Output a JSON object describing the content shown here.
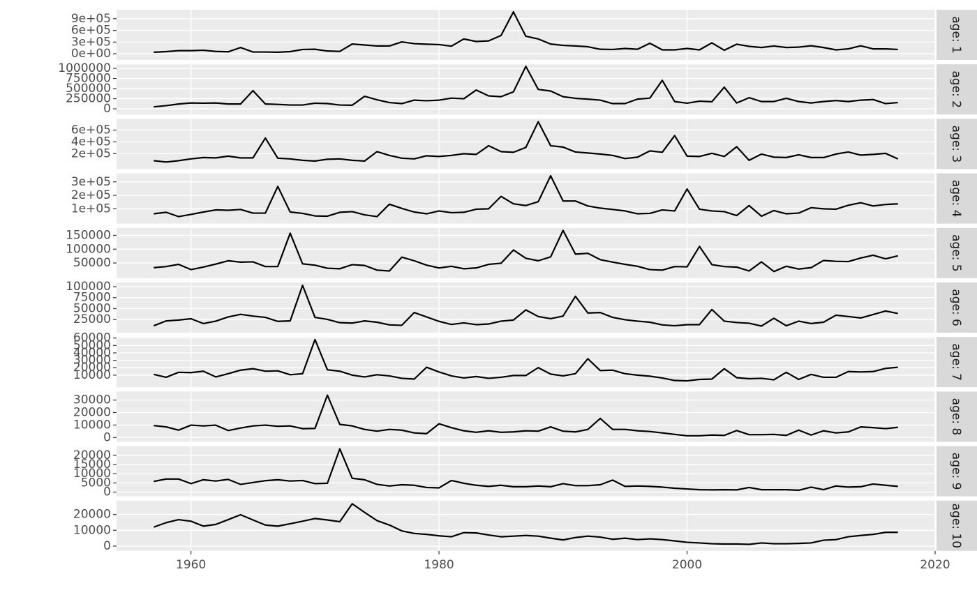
{
  "chart_data": {
    "type": "line",
    "color": "#000000",
    "grid": true,
    "x": [
      1957,
      1958,
      1959,
      1960,
      1961,
      1962,
      1963,
      1964,
      1965,
      1966,
      1967,
      1968,
      1969,
      1970,
      1971,
      1972,
      1973,
      1974,
      1975,
      1976,
      1977,
      1978,
      1979,
      1980,
      1981,
      1982,
      1983,
      1984,
      1985,
      1986,
      1987,
      1988,
      1989,
      1990,
      1991,
      1992,
      1993,
      1994,
      1995,
      1996,
      1997,
      1998,
      1999,
      2000,
      2001,
      2002,
      2003,
      2004,
      2005,
      2006,
      2007,
      2008,
      2009,
      2010,
      2011,
      2012,
      2013,
      2014,
      2015,
      2016,
      2017
    ],
    "xlim": [
      1954,
      2020
    ],
    "xticks": [
      1960,
      1980,
      2000,
      2020
    ],
    "facets": [
      {
        "strip": "age: 1",
        "ylim": [
          -160000,
          1130000
        ],
        "yticks": [
          {
            "value": 0,
            "label": "0e+00"
          },
          {
            "value": 300000,
            "label": "3e+05"
          },
          {
            "value": 600000,
            "label": "6e+05"
          },
          {
            "value": 900000,
            "label": "9e+05"
          }
        ],
        "values": [
          40000,
          55000,
          80000,
          80000,
          90000,
          60000,
          50000,
          160000,
          45000,
          45000,
          40000,
          55000,
          110000,
          115000,
          70000,
          60000,
          250000,
          225000,
          200000,
          200000,
          305000,
          260000,
          245000,
          235000,
          195000,
          380000,
          315000,
          330000,
          470000,
          1075000,
          450000,
          380000,
          250000,
          215000,
          200000,
          180000,
          115000,
          110000,
          135000,
          115000,
          270000,
          100000,
          100000,
          135000,
          100000,
          280000,
          90000,
          245000,
          190000,
          160000,
          200000,
          160000,
          170000,
          205000,
          160000,
          100000,
          125000,
          205000,
          125000,
          125000,
          110000
        ]
      },
      {
        "strip": "age: 2",
        "ylim": [
          -140000,
          1100000
        ],
        "yticks": [
          0,
          250000,
          500000,
          750000,
          1000000
        ],
        "values": [
          50000,
          80000,
          120000,
          145000,
          140000,
          145000,
          120000,
          120000,
          450000,
          120000,
          110000,
          95000,
          95000,
          140000,
          130000,
          95000,
          90000,
          310000,
          225000,
          155000,
          130000,
          215000,
          200000,
          215000,
          265000,
          250000,
          465000,
          320000,
          300000,
          420000,
          1050000,
          480000,
          440000,
          300000,
          260000,
          240000,
          215000,
          130000,
          130000,
          240000,
          265000,
          705000,
          180000,
          140000,
          190000,
          175000,
          535000,
          145000,
          275000,
          180000,
          180000,
          260000,
          180000,
          145000,
          180000,
          205000,
          180000,
          215000,
          230000,
          130000,
          155000
        ]
      },
      {
        "strip": "age: 3",
        "ylim": [
          -60000,
          790000
        ],
        "yticks": [
          {
            "value": 200000,
            "label": "2e+05"
          },
          {
            "value": 400000,
            "label": "4e+05"
          },
          {
            "value": 600000,
            "label": "6e+05"
          }
        ],
        "values": [
          82000,
          59000,
          82000,
          112000,
          135000,
          129000,
          159000,
          129000,
          129000,
          465000,
          124000,
          112000,
          88000,
          76000,
          106000,
          112000,
          88000,
          76000,
          235000,
          171000,
          124000,
          112000,
          165000,
          153000,
          171000,
          200000,
          188000,
          335000,
          235000,
          224000,
          306000,
          741000,
          335000,
          312000,
          229000,
          212000,
          194000,
          171000,
          118000,
          141000,
          247000,
          224000,
          506000,
          159000,
          153000,
          206000,
          153000,
          318000,
          88000,
          194000,
          141000,
          135000,
          182000,
          135000,
          135000,
          194000,
          229000,
          176000,
          188000,
          206000,
          112000
        ]
      },
      {
        "strip": "age: 4",
        "ylim": [
          -10000,
          363000
        ],
        "yticks": [
          {
            "value": 100000,
            "label": "1e+05"
          },
          {
            "value": 200000,
            "label": "2e+05"
          },
          {
            "value": 300000,
            "label": "3e+05"
          }
        ],
        "values": [
          63000,
          74000,
          42000,
          58000,
          76000,
          92000,
          89000,
          95000,
          68000,
          68000,
          266000,
          76000,
          66000,
          47000,
          45000,
          74000,
          79000,
          55000,
          42000,
          134000,
          103000,
          76000,
          63000,
          84000,
          71000,
          74000,
          97000,
          100000,
          192000,
          137000,
          124000,
          153000,
          345000,
          158000,
          158000,
          121000,
          105000,
          95000,
          84000,
          63000,
          66000,
          92000,
          84000,
          247000,
          97000,
          84000,
          79000,
          50000,
          124000,
          45000,
          87000,
          63000,
          68000,
          108000,
          100000,
          97000,
          126000,
          145000,
          121000,
          132000,
          137000
        ]
      },
      {
        "strip": "age: 5",
        "ylim": [
          -5000,
          177000
        ],
        "yticks": [
          50000,
          100000,
          150000
        ],
        "values": [
          33000,
          37000,
          45000,
          26000,
          35000,
          46000,
          58000,
          53000,
          54000,
          37000,
          37000,
          158000,
          47000,
          42000,
          31000,
          29000,
          44000,
          41000,
          24000,
          21000,
          71000,
          58000,
          42000,
          32000,
          38000,
          29000,
          32000,
          45000,
          49000,
          97000,
          67000,
          58000,
          72000,
          168000,
          82000,
          85000,
          62000,
          53000,
          45000,
          38000,
          26000,
          24000,
          37000,
          36000,
          110000,
          44000,
          37000,
          35000,
          21000,
          54000,
          19000,
          38000,
          28000,
          33000,
          59000,
          56000,
          55000,
          68000,
          78000,
          65000,
          76000
        ]
      },
      {
        "strip": "age: 6",
        "ylim": [
          -4800,
          109500
        ],
        "yticks": [
          25000,
          50000,
          75000,
          100000
        ],
        "values": [
          11000,
          22000,
          24000,
          27000,
          16000,
          21500,
          31000,
          37000,
          33000,
          30000,
          21000,
          22000,
          103000,
          30000,
          25500,
          18000,
          17000,
          22000,
          19000,
          13000,
          12000,
          41000,
          31000,
          21000,
          14000,
          17500,
          13500,
          15000,
          21500,
          24000,
          47000,
          32000,
          27000,
          33000,
          78000,
          40000,
          41000,
          30000,
          24700,
          21500,
          19000,
          13000,
          11000,
          13500,
          13500,
          48000,
          21500,
          18300,
          16700,
          10300,
          28000,
          11000,
          21500,
          16000,
          19000,
          35000,
          32000,
          28700,
          36600,
          44600,
          39000
        ]
      },
      {
        "strip": "age: 7",
        "ylim": [
          -6300,
          61400
        ],
        "yticks": [
          10000,
          20000,
          30000,
          40000,
          50000,
          60000
        ],
        "values": [
          11000,
          7100,
          13800,
          13400,
          15300,
          7600,
          11900,
          16700,
          18700,
          15300,
          15800,
          10500,
          11900,
          58000,
          17200,
          15300,
          10000,
          7600,
          10500,
          9000,
          5700,
          4700,
          20600,
          14300,
          9000,
          6200,
          8100,
          5700,
          7100,
          9500,
          9500,
          20100,
          11400,
          9000,
          11900,
          32100,
          16200,
          16700,
          11900,
          10000,
          8600,
          6200,
          2800,
          2300,
          4200,
          4700,
          18700,
          6600,
          5200,
          5700,
          3700,
          13800,
          4200,
          11000,
          7100,
          7100,
          14800,
          14300,
          14800,
          19100,
          20600
        ]
      },
      {
        "strip": "age: 8",
        "ylim": [
          -3400,
          36800
        ],
        "yticks": [
          0,
          10000,
          20000,
          30000
        ],
        "values": [
          9600,
          8500,
          5900,
          9900,
          9300,
          9900,
          5600,
          7600,
          9300,
          9900,
          9000,
          9300,
          7100,
          7300,
          33900,
          10500,
          9300,
          6500,
          5100,
          6500,
          5900,
          3700,
          3100,
          11000,
          7900,
          5400,
          4200,
          5400,
          4200,
          4500,
          5400,
          5100,
          8500,
          5100,
          4500,
          6500,
          15300,
          6500,
          6500,
          5400,
          4800,
          3700,
          2500,
          1400,
          1400,
          2000,
          1700,
          5600,
          2300,
          2300,
          2500,
          1700,
          5900,
          2000,
          5400,
          3700,
          4500,
          8500,
          7900,
          7100,
          8200
        ]
      },
      {
        "strip": "age: 9",
        "ylim": [
          -2300,
          25000
        ],
        "yticks": [
          0,
          5000,
          10000,
          15000,
          20000
        ],
        "values": [
          5800,
          7100,
          7100,
          4600,
          6700,
          6000,
          6900,
          4200,
          5200,
          6200,
          6700,
          6000,
          6300,
          4600,
          4800,
          23500,
          7500,
          6700,
          4200,
          3300,
          4000,
          3700,
          2500,
          2300,
          6300,
          4800,
          3700,
          3100,
          3700,
          2900,
          2900,
          3300,
          2900,
          4600,
          3500,
          3500,
          4000,
          6500,
          3100,
          3300,
          3100,
          2700,
          2100,
          1700,
          1300,
          1200,
          1300,
          1200,
          2500,
          1300,
          1300,
          1300,
          1000,
          2700,
          1300,
          3300,
          2700,
          2900,
          4400,
          3700,
          3100
        ]
      },
      {
        "strip": "age: 10",
        "ylim": [
          -3000,
          28700
        ],
        "yticks": [
          0,
          10000,
          20000
        ],
        "values": [
          12000,
          14800,
          16700,
          15700,
          12600,
          13700,
          16700,
          19800,
          16500,
          13300,
          12600,
          14100,
          15700,
          17400,
          16500,
          15400,
          26700,
          21300,
          16100,
          13300,
          9600,
          8000,
          7400,
          6500,
          5900,
          8500,
          8300,
          7000,
          5900,
          6300,
          6700,
          6300,
          5000,
          3900,
          5400,
          6300,
          5700,
          4300,
          5000,
          4100,
          4600,
          4100,
          3300,
          2400,
          2000,
          1500,
          1300,
          1300,
          1100,
          2000,
          1500,
          1500,
          1700,
          2000,
          3700,
          4100,
          5900,
          6700,
          7400,
          8700,
          8700
        ]
      }
    ]
  }
}
